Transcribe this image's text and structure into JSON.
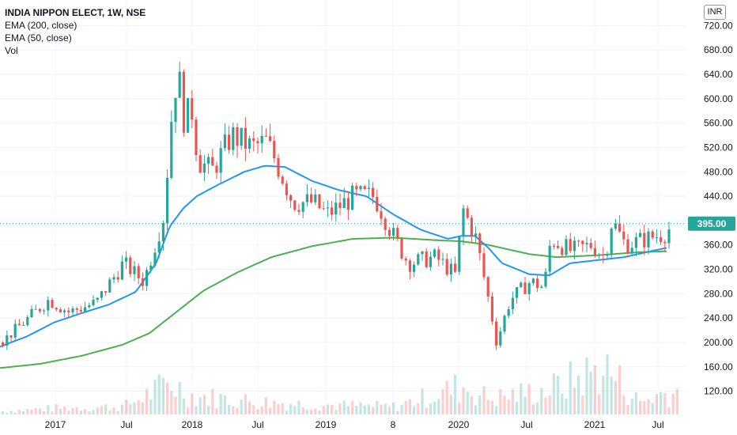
{
  "header": {
    "symbol_title": "INDIA NIPPON ELECT, 1W, NSE",
    "indicator_ema200": "EMA (200, close)",
    "indicator_ema50": "EMA (50, close)",
    "indicator_vol": "Vol",
    "currency": "INR"
  },
  "colors": {
    "up": "#26a69a",
    "down": "#ef5350",
    "ema50": "#2196f3",
    "ema200": "#4caf50",
    "last_price_bg": "#26a69a"
  },
  "chart_data": {
    "type": "candlestick",
    "ylim": [
      100,
      740
    ],
    "y_ticks": [
      "720.00",
      "680.00",
      "640.00",
      "600.00",
      "560.00",
      "520.00",
      "480.00",
      "440.00",
      "400.00",
      "360.00",
      "320.00",
      "280.00",
      "240.00",
      "200.00",
      "160.00",
      "120.00"
    ],
    "x_tick_labels": [
      "2017",
      "Jul",
      "2018",
      "Jul",
      "2019",
      "8",
      "2020",
      "Jul",
      "2021",
      "Jul"
    ],
    "last_price": 395.0,
    "last_price_label": "395.00",
    "grid": true,
    "price_path": [
      [
        2016.6,
        200
      ],
      [
        2016.8,
        240
      ],
      [
        2016.95,
        270
      ],
      [
        2017.1,
        250
      ],
      [
        2017.3,
        265
      ],
      [
        2017.5,
        330
      ],
      [
        2017.65,
        300
      ],
      [
        2017.8,
        410
      ],
      [
        2017.85,
        560
      ],
      [
        2017.9,
        650
      ],
      [
        2017.95,
        560
      ],
      [
        2018.0,
        590
      ],
      [
        2018.05,
        500
      ],
      [
        2018.15,
        480
      ],
      [
        2018.3,
        540
      ],
      [
        2018.45,
        520
      ],
      [
        2018.55,
        530
      ],
      [
        2018.6,
        510
      ],
      [
        2018.75,
        430
      ],
      [
        2018.9,
        430
      ],
      [
        2019.0,
        410
      ],
      [
        2019.2,
        440
      ],
      [
        2019.35,
        440
      ],
      [
        2019.5,
        370
      ],
      [
        2019.6,
        330
      ],
      [
        2019.8,
        340
      ],
      [
        2019.95,
        310
      ],
      [
        2020.0,
        420
      ],
      [
        2020.1,
        370
      ],
      [
        2020.2,
        260
      ],
      [
        2020.25,
        200
      ],
      [
        2020.35,
        270
      ],
      [
        2020.5,
        300
      ],
      [
        2020.6,
        290
      ],
      [
        2020.65,
        370
      ],
      [
        2020.8,
        350
      ],
      [
        2020.95,
        360
      ],
      [
        2021.05,
        340
      ],
      [
        2021.1,
        400
      ],
      [
        2021.2,
        360
      ],
      [
        2021.35,
        370
      ],
      [
        2021.5,
        380
      ],
      [
        2021.55,
        395
      ]
    ],
    "ema50_path": [
      [
        2016.6,
        193
      ],
      [
        2016.8,
        210
      ],
      [
        2017.0,
        233
      ],
      [
        2017.2,
        248
      ],
      [
        2017.4,
        262
      ],
      [
        2017.6,
        283
      ],
      [
        2017.75,
        330
      ],
      [
        2017.85,
        390
      ],
      [
        2017.95,
        420
      ],
      [
        2018.05,
        440
      ],
      [
        2018.2,
        458
      ],
      [
        2018.4,
        480
      ],
      [
        2018.55,
        490
      ],
      [
        2018.7,
        488
      ],
      [
        2018.9,
        465
      ],
      [
        2019.1,
        450
      ],
      [
        2019.3,
        440
      ],
      [
        2019.5,
        410
      ],
      [
        2019.7,
        385
      ],
      [
        2019.9,
        370
      ],
      [
        2020.0,
        375
      ],
      [
        2020.1,
        375
      ],
      [
        2020.2,
        355
      ],
      [
        2020.3,
        330
      ],
      [
        2020.5,
        312
      ],
      [
        2020.65,
        310
      ],
      [
        2020.8,
        330
      ],
      [
        2021.0,
        335
      ],
      [
        2021.2,
        340
      ],
      [
        2021.4,
        350
      ],
      [
        2021.55,
        357
      ]
    ],
    "ema200_path": [
      [
        2016.6,
        158
      ],
      [
        2016.9,
        165
      ],
      [
        2017.2,
        178
      ],
      [
        2017.5,
        196
      ],
      [
        2017.7,
        215
      ],
      [
        2017.9,
        250
      ],
      [
        2018.1,
        285
      ],
      [
        2018.35,
        315
      ],
      [
        2018.6,
        340
      ],
      [
        2018.9,
        358
      ],
      [
        2019.2,
        370
      ],
      [
        2019.5,
        372
      ],
      [
        2019.8,
        368
      ],
      [
        2020.0,
        366
      ],
      [
        2020.2,
        360
      ],
      [
        2020.5,
        345
      ],
      [
        2020.7,
        340
      ],
      [
        2021.0,
        343
      ],
      [
        2021.3,
        348
      ],
      [
        2021.55,
        350
      ]
    ],
    "volume_path": [
      [
        2016.6,
        2
      ],
      [
        2017.0,
        4
      ],
      [
        2017.5,
        5
      ],
      [
        2017.85,
        20
      ],
      [
        2018.0,
        12
      ],
      [
        2018.5,
        8
      ],
      [
        2019.0,
        6
      ],
      [
        2019.5,
        5
      ],
      [
        2020.0,
        18
      ],
      [
        2020.2,
        10
      ],
      [
        2020.65,
        16
      ],
      [
        2021.05,
        30
      ],
      [
        2021.3,
        8
      ],
      [
        2021.5,
        14
      ]
    ]
  }
}
